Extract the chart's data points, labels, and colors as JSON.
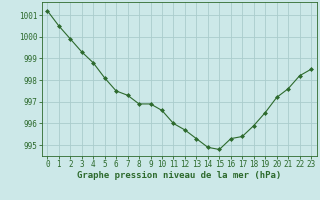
{
  "x": [
    0,
    1,
    2,
    3,
    4,
    5,
    6,
    7,
    8,
    9,
    10,
    11,
    12,
    13,
    14,
    15,
    16,
    17,
    18,
    19,
    20,
    21,
    22,
    23
  ],
  "y": [
    1001.2,
    1000.5,
    999.9,
    999.3,
    998.8,
    998.1,
    997.5,
    997.3,
    996.9,
    996.9,
    996.6,
    996.0,
    995.7,
    995.3,
    994.9,
    994.8,
    995.3,
    995.4,
    995.9,
    996.5,
    997.2,
    997.6,
    998.2,
    998.5
  ],
  "line_color": "#2d6a2d",
  "marker": "D",
  "marker_size": 2,
  "bg_color": "#cce8e8",
  "grid_color": "#aacccc",
  "xlabel": "Graphe pression niveau de la mer (hPa)",
  "xlabel_color": "#2d6a2d",
  "tick_color": "#2d6a2d",
  "ylim": [
    994.5,
    1001.6
  ],
  "yticks": [
    995,
    996,
    997,
    998,
    999,
    1000,
    1001
  ],
  "xlim": [
    -0.5,
    23.5
  ],
  "xticks": [
    0,
    1,
    2,
    3,
    4,
    5,
    6,
    7,
    8,
    9,
    10,
    11,
    12,
    13,
    14,
    15,
    16,
    17,
    18,
    19,
    20,
    21,
    22,
    23
  ],
  "tick_fontsize": 5.5,
  "label_fontsize": 6.5
}
